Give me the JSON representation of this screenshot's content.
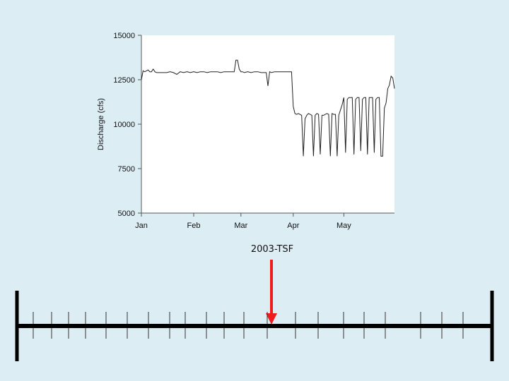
{
  "chart_data": {
    "type": "line",
    "title": "",
    "xlabel": "",
    "ylabel": "Discharge (cfs)",
    "ylim": [
      5000,
      15000
    ],
    "xlim": [
      1,
      151
    ],
    "yticks": [
      5000,
      7500,
      10000,
      12500,
      15000
    ],
    "ytick_labels": [
      "5000",
      "7500",
      "10000",
      "12500",
      "15000"
    ],
    "xticks": [
      1,
      32,
      60,
      91,
      121
    ],
    "xtick_labels": [
      "Jan",
      "Feb",
      "Mar",
      "Apr",
      "May"
    ],
    "grid": false,
    "series": [
      {
        "x": [
          1,
          2,
          3,
          4,
          5,
          6,
          7,
          8,
          9,
          10,
          12,
          14,
          16,
          18,
          20,
          22,
          24,
          26,
          28,
          30,
          32,
          34,
          36,
          38,
          40,
          42,
          44,
          46,
          48,
          50,
          52,
          54,
          56,
          57,
          58,
          59,
          60,
          61,
          62,
          64,
          66,
          68,
          70,
          72,
          74,
          75,
          76,
          77,
          78,
          80,
          82,
          84,
          86,
          88,
          90,
          91,
          92,
          93,
          94,
          95,
          96,
          97,
          98,
          99,
          100,
          101,
          102,
          103,
          104,
          105,
          106,
          107,
          108,
          109,
          110,
          111,
          112,
          113,
          114,
          115,
          116,
          117,
          118,
          119,
          120,
          121,
          122,
          123,
          124,
          125,
          126,
          127,
          128,
          129,
          130,
          131,
          132,
          133,
          134,
          135,
          136,
          137,
          138,
          139,
          140,
          141,
          142,
          143,
          144,
          145,
          146,
          147,
          148,
          149,
          150,
          151
        ],
        "y": [
          12500,
          13000,
          12950,
          13000,
          13050,
          12950,
          12950,
          13100,
          12950,
          12900,
          12900,
          12900,
          12900,
          12950,
          12900,
          12800,
          12950,
          12900,
          12950,
          12900,
          12950,
          12900,
          12950,
          12950,
          12900,
          12950,
          12950,
          12950,
          12900,
          12950,
          12950,
          12950,
          12950,
          13600,
          13600,
          13100,
          12950,
          12950,
          12900,
          12950,
          12900,
          12950,
          12950,
          12900,
          12900,
          12900,
          12150,
          12950,
          12900,
          12950,
          12950,
          12950,
          12950,
          12950,
          12950,
          11000,
          10600,
          10550,
          10600,
          10550,
          10500,
          8200,
          10300,
          10500,
          10600,
          10550,
          10500,
          8200,
          10500,
          10600,
          10550,
          8300,
          10500,
          10500,
          10550,
          10600,
          10550,
          8200,
          10600,
          10550,
          10550,
          8200,
          10500,
          10800,
          11100,
          11500,
          8400,
          11400,
          11500,
          11500,
          11500,
          8300,
          11400,
          11500,
          11500,
          8500,
          11400,
          11500,
          11500,
          8300,
          11500,
          11500,
          11500,
          8400,
          11400,
          11500,
          11500,
          8200,
          8200,
          10900,
          11200,
          12000,
          12200,
          12700,
          12600,
          12000
        ]
      }
    ]
  },
  "annotation": {
    "label": "2003-TSF",
    "line_color": "#ee1c1c"
  },
  "timeline": {
    "color": "#000000",
    "tick_count": 20
  }
}
